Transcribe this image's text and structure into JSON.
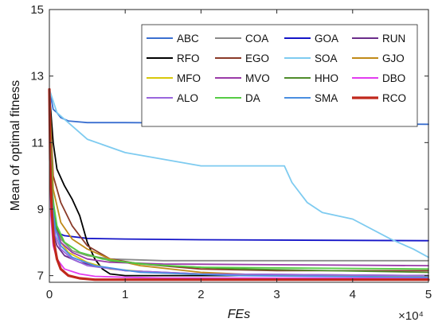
{
  "chart_data": {
    "type": "line",
    "xlabel": "FEs",
    "ylabel": "Mean of optimal fitness",
    "x_multiplier": "×10⁴",
    "xlim": [
      0,
      50000
    ],
    "ylim": [
      6.8,
      15
    ],
    "xticks": [
      0,
      10000,
      20000,
      30000,
      40000,
      50000
    ],
    "xtick_labels": [
      "0",
      "1",
      "2",
      "3",
      "4",
      "5"
    ],
    "yticks": [
      7,
      9,
      11,
      13,
      15
    ],
    "ytick_labels": [
      "7",
      "9",
      "11",
      "13",
      "15"
    ],
    "grid": false,
    "legend_position": "top-right",
    "series": [
      {
        "name": "ABC",
        "color": "#3a6fd0",
        "x": [
          0,
          500,
          1000,
          1500,
          2500,
          5000,
          10000,
          50000
        ],
        "y": [
          12.6,
          12.0,
          11.9,
          11.75,
          11.65,
          11.6,
          11.6,
          11.55
        ]
      },
      {
        "name": "COA",
        "color": "#8a8a8a",
        "x": [
          0,
          300,
          800,
          1500,
          3000,
          5000,
          8000,
          15000,
          50000
        ],
        "y": [
          12.5,
          9.8,
          8.6,
          8.1,
          7.75,
          7.6,
          7.5,
          7.45,
          7.45
        ]
      },
      {
        "name": "GOA",
        "color": "#1414c8",
        "x": [
          0,
          200,
          500,
          1000,
          2000,
          5000,
          10000,
          20000,
          50000
        ],
        "y": [
          12.5,
          9.5,
          8.6,
          8.3,
          8.2,
          8.12,
          8.1,
          8.08,
          8.05
        ]
      },
      {
        "name": "RUN",
        "color": "#6a2c8a",
        "x": [
          0,
          200,
          500,
          1000,
          2000,
          4000,
          6000,
          10000,
          20000,
          50000
        ],
        "y": [
          12.5,
          9.2,
          8.3,
          7.9,
          7.6,
          7.4,
          7.3,
          7.15,
          7.05,
          7.0
        ]
      },
      {
        "name": "RFO",
        "color": "#000000",
        "x": [
          0,
          500,
          1000,
          2000,
          3000,
          4000,
          5000,
          6000,
          7000,
          8000,
          10000,
          15000,
          50000
        ],
        "y": [
          12.5,
          11.0,
          10.2,
          9.7,
          9.3,
          8.8,
          8.0,
          7.5,
          7.2,
          7.05,
          7.0,
          7.0,
          7.0
        ]
      },
      {
        "name": "EGO",
        "color": "#8a3a28",
        "x": [
          0,
          500,
          1500,
          3000,
          5000,
          8000,
          12000,
          20000,
          30000,
          50000
        ],
        "y": [
          12.5,
          10.0,
          9.2,
          8.5,
          7.9,
          7.5,
          7.35,
          7.2,
          7.15,
          7.15
        ]
      },
      {
        "name": "SOA",
        "color": "#7ecbf0",
        "x": [
          0,
          1000,
          5000,
          10000,
          15000,
          20000,
          24000,
          31000,
          32000,
          34000,
          36000,
          40000,
          45000,
          48000,
          50000
        ],
        "y": [
          12.6,
          11.9,
          11.1,
          10.7,
          10.5,
          10.3,
          10.3,
          10.3,
          9.8,
          9.2,
          8.9,
          8.7,
          8.1,
          7.8,
          7.55
        ]
      },
      {
        "name": "GJO",
        "color": "#c08a18",
        "x": [
          0,
          500,
          1500,
          3000,
          5000,
          8000,
          12000,
          20000,
          30000,
          50000
        ],
        "y": [
          12.5,
          9.6,
          8.6,
          8.1,
          7.8,
          7.5,
          7.3,
          7.1,
          7.0,
          6.97
        ]
      },
      {
        "name": "MFO",
        "color": "#d8c80a",
        "x": [
          0,
          400,
          1200,
          2500,
          5000,
          8000,
          15000,
          30000,
          50000
        ],
        "y": [
          12.5,
          9.0,
          8.1,
          7.7,
          7.4,
          7.2,
          7.08,
          7.0,
          6.98
        ]
      },
      {
        "name": "MVO",
        "color": "#9a3aa8",
        "x": [
          0,
          300,
          800,
          1500,
          3000,
          5000,
          8000,
          15000,
          50000
        ],
        "y": [
          12.5,
          9.5,
          8.5,
          8.0,
          7.7,
          7.5,
          7.4,
          7.35,
          7.3
        ]
      },
      {
        "name": "HHO",
        "color": "#4f8c2a",
        "x": [
          0,
          400,
          1000,
          2000,
          4000,
          8000,
          15000,
          25000,
          50000
        ],
        "y": [
          12.5,
          9.2,
          8.4,
          8.0,
          7.7,
          7.45,
          7.3,
          7.2,
          7.1
        ]
      },
      {
        "name": "DBO",
        "color": "#e23cf0",
        "x": [
          0,
          200,
          500,
          1000,
          2000,
          4000,
          6000,
          10000,
          15000,
          50000
        ],
        "y": [
          12.5,
          8.8,
          7.9,
          7.5,
          7.2,
          7.05,
          6.98,
          6.95,
          6.93,
          6.92
        ]
      },
      {
        "name": "ALO",
        "color": "#9966dd",
        "x": [
          0,
          300,
          800,
          1500,
          3000,
          5000,
          10000,
          20000,
          50000
        ],
        "y": [
          12.5,
          9.0,
          8.2,
          7.8,
          7.5,
          7.3,
          7.15,
          7.05,
          7.0
        ]
      },
      {
        "name": "DA",
        "color": "#55cc44",
        "x": [
          0,
          400,
          1000,
          2000,
          4000,
          7000,
          12000,
          20000,
          50000
        ],
        "y": [
          12.5,
          9.4,
          8.5,
          8.0,
          7.7,
          7.5,
          7.35,
          7.25,
          7.2
        ]
      },
      {
        "name": "SMA",
        "color": "#4a8ee0",
        "x": [
          0,
          300,
          800,
          1500,
          3000,
          6000,
          12000,
          25000,
          50000
        ],
        "y": [
          12.5,
          9.3,
          8.4,
          7.9,
          7.55,
          7.3,
          7.1,
          7.0,
          6.95
        ]
      },
      {
        "name": "RCO",
        "color": "#c0281c",
        "x": [
          0,
          100,
          300,
          600,
          1000,
          1500,
          2500,
          4000,
          6000,
          10000,
          20000,
          50000
        ],
        "y": [
          12.6,
          10.5,
          9.0,
          8.0,
          7.5,
          7.2,
          7.0,
          6.92,
          6.88,
          6.88,
          6.88,
          6.88
        ]
      }
    ]
  }
}
